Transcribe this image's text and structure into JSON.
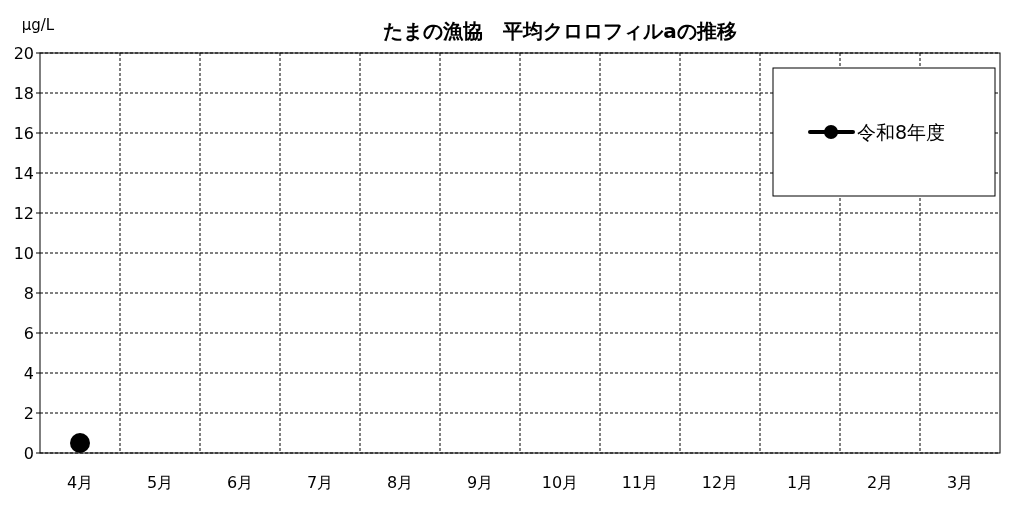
{
  "chart_data": {
    "type": "line",
    "title": "たまの漁協　平均クロロフィルaの推移",
    "ylabel": "μg/L",
    "categories": [
      "4月",
      "5月",
      "6月",
      "7月",
      "8月",
      "9月",
      "10月",
      "11月",
      "12月",
      "1月",
      "2月",
      "3月"
    ],
    "series": [
      {
        "name": "令和8年度",
        "color": "#000000",
        "values": [
          0.5,
          null,
          null,
          null,
          null,
          null,
          null,
          null,
          null,
          null,
          null,
          null
        ]
      }
    ],
    "ylim": [
      0,
      20
    ],
    "yticks": [
      0,
      2,
      4,
      6,
      8,
      10,
      12,
      14,
      16,
      18,
      20
    ],
    "grid": true,
    "legend": "top right",
    "marker": "circle",
    "line_style": "solid"
  }
}
